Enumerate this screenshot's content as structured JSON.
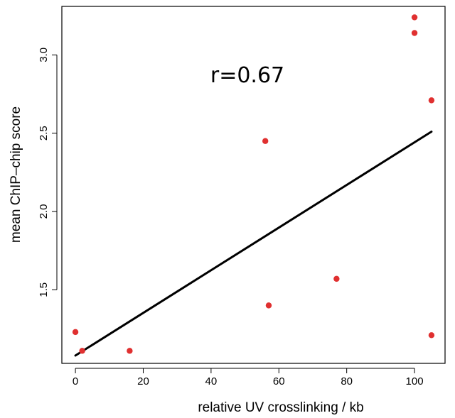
{
  "chart_data": {
    "type": "scatter",
    "title": "",
    "xlabel": "relative UV crosslinking / kb",
    "ylabel": "mean ChIP–chip score",
    "xlim": [
      -4,
      109
    ],
    "ylim": [
      1.03,
      3.31
    ],
    "xticks": [
      0,
      20,
      40,
      60,
      80,
      100
    ],
    "xtick_labels": [
      "0",
      "20",
      "40",
      "60",
      "80",
      "100"
    ],
    "yticks": [
      1.5,
      2.0,
      2.5,
      3.0
    ],
    "ytick_labels": [
      "1.5",
      "2.0",
      "2.5",
      "3.0"
    ],
    "grid": false,
    "legend": "none",
    "annotation": "r=0.67",
    "points": [
      {
        "x": 0,
        "y": 1.23
      },
      {
        "x": 2,
        "y": 1.11
      },
      {
        "x": 16,
        "y": 1.11
      },
      {
        "x": 56,
        "y": 2.45
      },
      {
        "x": 57,
        "y": 1.4
      },
      {
        "x": 77,
        "y": 1.57
      },
      {
        "x": 100,
        "y": 3.24
      },
      {
        "x": 100,
        "y": 3.14
      },
      {
        "x": 105,
        "y": 2.71
      },
      {
        "x": 105,
        "y": 1.21
      }
    ],
    "fit_line": {
      "x": [
        0,
        105
      ],
      "y": [
        1.08,
        2.51
      ]
    },
    "colors": {
      "points": "#e03030",
      "fit_line": "#000000",
      "axes": "#000000"
    }
  }
}
